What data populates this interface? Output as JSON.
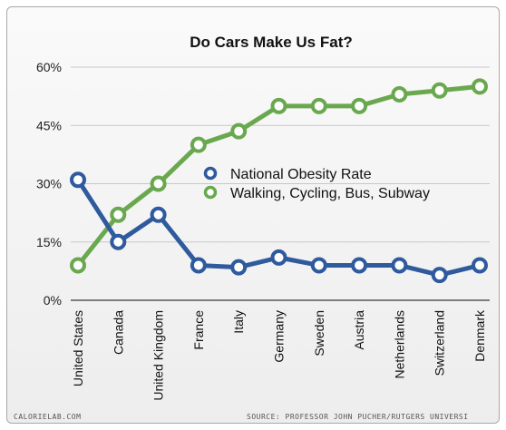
{
  "chart_data": {
    "type": "line",
    "title": "Do Cars Make Us Fat?",
    "categories": [
      "United States",
      "Canada",
      "United Kingdom",
      "France",
      "Italy",
      "Germany",
      "Sweden",
      "Austria",
      "Netherlands",
      "Switzerland",
      "Denmark"
    ],
    "yticks": [
      "60%",
      "45%",
      "30%",
      "15%",
      "0%"
    ],
    "ytick_values": [
      60,
      45,
      30,
      15,
      0
    ],
    "ylim": [
      0,
      60
    ],
    "grid": true,
    "legend_position": "center-right",
    "series": [
      {
        "name": "National Obesity Rate",
        "color": "#2f5a9e",
        "values": [
          31,
          15,
          22,
          9,
          8.5,
          11,
          9,
          9,
          9,
          6.5,
          9
        ]
      },
      {
        "name": "Walking, Cycling, Bus, Subway",
        "color": "#6aa84f",
        "values": [
          9,
          22,
          30,
          40,
          43.5,
          50,
          50,
          50,
          53,
          54,
          55
        ]
      }
    ],
    "footer_left": "CALORIELAB.COM",
    "footer_right": "SOURCE: PROFESSOR JOHN PUCHER/RUTGERS UNIVERSI"
  }
}
